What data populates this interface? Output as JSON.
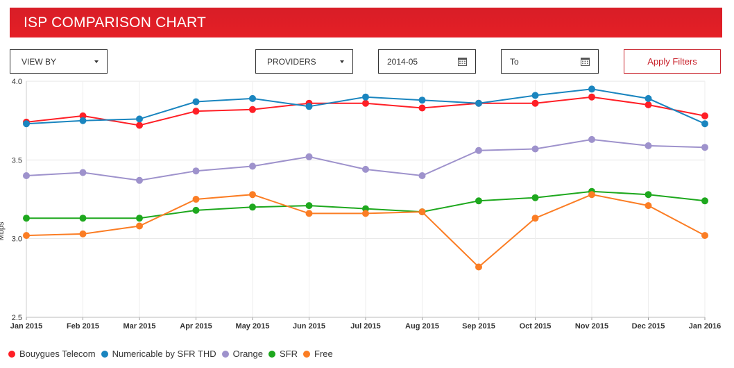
{
  "header": {
    "title": "ISP COMPARISON CHART"
  },
  "filters": {
    "view_by": "VIEW BY",
    "providers": "PROVIDERS",
    "from_value": "2014-05",
    "to_placeholder": "To",
    "apply_label": "Apply Filters"
  },
  "colors": {
    "accent": "#e51f26"
  },
  "chart_data": {
    "type": "line",
    "title": "",
    "ylabel": "Mbps",
    "ylim": [
      2.5,
      4.0
    ],
    "yticks": [
      "2.5",
      "3.0",
      "3.5",
      "4.0"
    ],
    "categories": [
      "Jan 2015",
      "Feb 2015",
      "Mar 2015",
      "Apr 2015",
      "May 2015",
      "Jun 2015",
      "Jul 2015",
      "Aug 2015",
      "Sep 2015",
      "Oct 2015",
      "Nov 2015",
      "Dec 2015",
      "Jan 2016"
    ],
    "grid": true,
    "legend_position": "bottom-left",
    "series": [
      {
        "name": "Bouygues Telecom",
        "color": "#ff1f26",
        "values": [
          3.74,
          3.78,
          3.72,
          3.81,
          3.82,
          3.86,
          3.86,
          3.83,
          3.86,
          3.86,
          3.9,
          3.85,
          3.78
        ]
      },
      {
        "name": "Numericable by SFR THD",
        "color": "#1a85bf",
        "values": [
          3.73,
          3.75,
          3.76,
          3.87,
          3.89,
          3.84,
          3.9,
          3.88,
          3.86,
          3.91,
          3.95,
          3.89,
          3.73
        ]
      },
      {
        "name": "Orange",
        "color": "#9e92cc",
        "values": [
          3.4,
          3.42,
          3.37,
          3.43,
          3.46,
          3.52,
          3.44,
          3.4,
          3.56,
          3.57,
          3.63,
          3.59,
          3.58
        ]
      },
      {
        "name": "SFR",
        "color": "#1ea81e",
        "values": [
          3.13,
          3.13,
          3.13,
          3.18,
          3.2,
          3.21,
          3.19,
          3.17,
          3.24,
          3.26,
          3.3,
          3.28,
          3.24
        ]
      },
      {
        "name": "Free",
        "color": "#fb7d24",
        "values": [
          3.02,
          3.03,
          3.08,
          3.25,
          3.28,
          3.16,
          3.16,
          3.17,
          2.82,
          3.13,
          3.28,
          3.21,
          3.02
        ]
      }
    ]
  }
}
